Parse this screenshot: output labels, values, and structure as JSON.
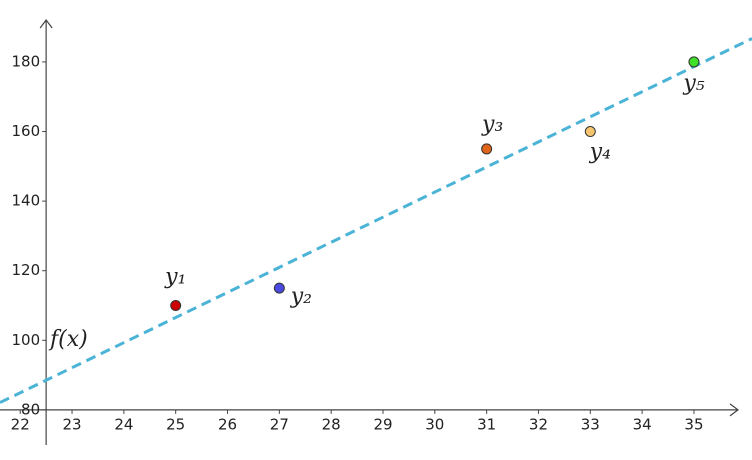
{
  "chart_data": {
    "type": "scatter",
    "xlim": [
      21.61,
      36.12
    ],
    "ylim": [
      65.6,
      197.8
    ],
    "xticks": [
      22,
      23,
      24,
      25,
      26,
      27,
      28,
      29,
      30,
      31,
      32,
      33,
      34,
      35
    ],
    "yticks": [
      80,
      100,
      120,
      140,
      160,
      180
    ],
    "yaxis_at_x": 22.5,
    "grid": false,
    "series": [
      {
        "name": "y₁",
        "color": "#cc0000",
        "x": [
          25
        ],
        "values": [
          110
        ]
      },
      {
        "name": "y₂",
        "color": "#4a4ae0",
        "x": [
          27
        ],
        "values": [
          115
        ]
      },
      {
        "name": "y₃",
        "color": "#e0651a",
        "x": [
          31
        ],
        "values": [
          155
        ]
      },
      {
        "name": "y₄",
        "color": "#f5c46e",
        "x": [
          33
        ],
        "values": [
          160
        ]
      },
      {
        "name": "y₅",
        "color": "#3fe02a",
        "x": [
          35
        ],
        "values": [
          180
        ]
      }
    ],
    "line": {
      "label": "f(x)",
      "slope": 7.21,
      "intercept": -73.7,
      "color": "#4ab3d6"
    }
  }
}
